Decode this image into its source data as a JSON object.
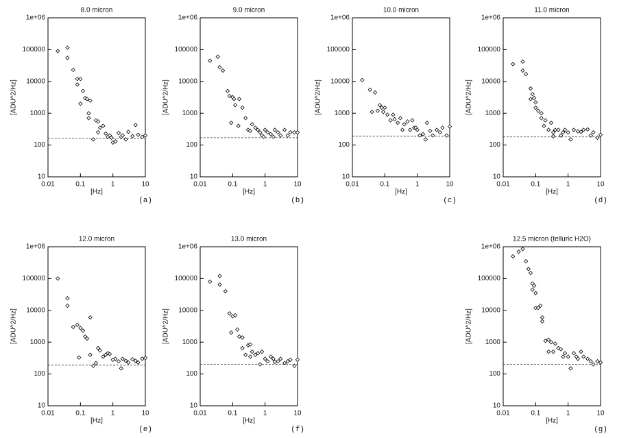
{
  "chart_data": [
    {
      "type": "scatter",
      "title": "8.0 micron",
      "x_label": "[Hz]",
      "y_label": "[ADU^2/Hz]",
      "panel_label": "(a)",
      "log_x": true,
      "log_y": true,
      "marker": "diamond",
      "color": "#000000",
      "xlim": [
        0.01,
        10
      ],
      "ylim": [
        10,
        1000000
      ],
      "xticks": [
        0.01,
        0.1,
        1,
        10
      ],
      "yticks": [
        10,
        100,
        1000,
        10000,
        100000,
        {
          "value": 1000000,
          "label": "1e+06"
        }
      ],
      "noise_level": 160,
      "x": [
        0.02,
        0.04,
        0.04,
        0.06,
        0.08,
        0.08,
        0.1,
        0.1,
        0.12,
        0.14,
        0.16,
        0.18,
        0.18,
        0.2,
        0.25,
        0.3,
        0.35,
        0.35,
        0.4,
        0.5,
        0.6,
        0.7,
        0.8,
        0.9,
        1,
        1.2,
        1.5,
        1.8,
        2,
        2.5,
        3,
        4,
        5,
        6,
        8,
        10
      ],
      "values": [
        90000,
        115000,
        55000,
        23000,
        12000,
        8000,
        12000,
        2000,
        5000,
        3000,
        2800,
        1000,
        700,
        2500,
        150,
        600,
        550,
        250,
        350,
        400,
        230,
        180,
        200,
        170,
        120,
        130,
        240,
        180,
        200,
        150,
        260,
        190,
        430,
        210,
        180,
        200
      ]
    },
    {
      "type": "scatter",
      "title": "9.0 micron",
      "x_label": "[Hz]",
      "y_label": "[ADU^2/Hz]",
      "panel_label": "(b)",
      "log_x": true,
      "log_y": true,
      "marker": "diamond",
      "color": "#000000",
      "xlim": [
        0.01,
        10
      ],
      "ylim": [
        10,
        1000000
      ],
      "xticks": [
        0.01,
        0.1,
        1,
        10
      ],
      "yticks": [
        10,
        100,
        1000,
        10000,
        100000,
        {
          "value": 1000000,
          "label": "1e+06"
        }
      ],
      "noise_level": 170,
      "x": [
        0.02,
        0.035,
        0.04,
        0.05,
        0.07,
        0.08,
        0.1,
        0.11,
        0.12,
        0.09,
        0.15,
        0.16,
        0.2,
        0.25,
        0.3,
        0.35,
        0.4,
        0.5,
        0.6,
        0.7,
        0.8,
        0.9,
        1,
        1.2,
        1.5,
        1.8,
        2,
        2.5,
        3,
        4,
        5,
        6,
        8,
        10
      ],
      "values": [
        45000,
        60000,
        28000,
        22000,
        5000,
        3500,
        3200,
        2800,
        1800,
        500,
        400,
        2800,
        1500,
        700,
        300,
        280,
        450,
        350,
        300,
        250,
        200,
        180,
        300,
        250,
        220,
        180,
        300,
        250,
        200,
        300,
        200,
        250,
        250,
        250
      ]
    },
    {
      "type": "scatter",
      "title": "10.0 micron",
      "x_label": "[Hz]",
      "y_label": "[ADU^2/Hz]",
      "panel_label": "(c)",
      "log_x": true,
      "log_y": true,
      "marker": "diamond",
      "color": "#000000",
      "xlim": [
        0.01,
        10
      ],
      "ylim": [
        10,
        1000000
      ],
      "xticks": [
        0.01,
        0.1,
        1,
        10
      ],
      "yticks": [
        10,
        100,
        1000,
        10000,
        100000,
        {
          "value": 1000000,
          "label": "1e+06"
        }
      ],
      "noise_level": 190,
      "x": [
        0.02,
        0.035,
        0.04,
        0.05,
        0.06,
        0.07,
        0.08,
        0.09,
        0.1,
        0.12,
        0.15,
        0.18,
        0.2,
        0.25,
        0.3,
        0.35,
        0.4,
        0.5,
        0.6,
        0.7,
        0.8,
        0.9,
        1,
        1.2,
        1.5,
        1.8,
        2,
        2.5,
        3,
        4,
        5,
        6,
        8,
        10
      ],
      "values": [
        11000,
        5500,
        1100,
        4500,
        1200,
        1800,
        1500,
        1100,
        1500,
        900,
        600,
        900,
        650,
        500,
        700,
        300,
        450,
        550,
        300,
        600,
        350,
        350,
        300,
        200,
        220,
        150,
        500,
        280,
        200,
        300,
        250,
        350,
        200,
        380
      ]
    },
    {
      "type": "scatter",
      "title": "11.0 micron",
      "x_label": "[Hz]",
      "y_label": "[ADU^2/Hz]",
      "panel_label": "(d)",
      "log_x": true,
      "log_y": true,
      "marker": "diamond",
      "color": "#000000",
      "xlim": [
        0.01,
        10
      ],
      "ylim": [
        10,
        1000000
      ],
      "xticks": [
        0.01,
        0.1,
        1,
        10
      ],
      "yticks": [
        10,
        100,
        1000,
        10000,
        100000,
        {
          "value": 1000000,
          "label": "1e+06"
        }
      ],
      "noise_level": 180,
      "x": [
        0.02,
        0.04,
        0.04,
        0.05,
        0.07,
        0.08,
        0.09,
        0.07,
        0.1,
        0.1,
        0.12,
        0.15,
        0.15,
        0.18,
        0.2,
        0.25,
        0.3,
        0.35,
        0.35,
        0.4,
        0.5,
        0.6,
        0.7,
        0.8,
        1,
        1.2,
        1.5,
        2,
        2.5,
        3,
        4,
        5,
        6,
        8,
        10
      ],
      "values": [
        35000,
        42000,
        22000,
        17000,
        6000,
        4000,
        3000,
        2800,
        2200,
        1500,
        1200,
        1000,
        700,
        400,
        600,
        300,
        500,
        250,
        190,
        300,
        300,
        200,
        250,
        300,
        250,
        150,
        300,
        270,
        260,
        300,
        310,
        200,
        250,
        170,
        210
      ]
    },
    {
      "type": "scatter",
      "title": "12.0 micron",
      "x_label": "[Hz]",
      "y_label": "[ADU^2/Hz]",
      "panel_label": "(e)",
      "log_x": true,
      "log_y": true,
      "marker": "diamond",
      "color": "#000000",
      "xlim": [
        0.01,
        10
      ],
      "ylim": [
        10,
        1000000
      ],
      "xticks": [
        0.01,
        0.1,
        1,
        10
      ],
      "yticks": [
        10,
        100,
        1000,
        10000,
        100000,
        {
          "value": 1000000,
          "label": "1e+06"
        }
      ],
      "noise_level": 190,
      "x": [
        0.02,
        0.04,
        0.04,
        0.06,
        0.08,
        0.09,
        0.1,
        0.12,
        0.14,
        0.16,
        0.2,
        0.2,
        0.25,
        0.3,
        0.35,
        0.4,
        0.5,
        0.6,
        0.7,
        0.8,
        1,
        1.2,
        1.5,
        1.8,
        2,
        2.5,
        3,
        4,
        5,
        6,
        8,
        10
      ],
      "values": [
        100000,
        24000,
        14000,
        3000,
        3500,
        330,
        2800,
        2300,
        1500,
        1300,
        6000,
        400,
        180,
        220,
        650,
        550,
        350,
        400,
        450,
        420,
        280,
        300,
        250,
        150,
        300,
        260,
        230,
        290,
        260,
        230,
        300,
        320
      ]
    },
    {
      "type": "scatter",
      "title": "13.0 micron",
      "x_label": "[Hz]",
      "y_label": "[ADU^2/Hz]",
      "panel_label": "(f)",
      "log_x": true,
      "log_y": true,
      "marker": "diamond",
      "color": "#000000",
      "xlim": [
        0.01,
        10
      ],
      "ylim": [
        10,
        1000000
      ],
      "xticks": [
        0.01,
        0.1,
        1,
        10
      ],
      "yticks": [
        10,
        100,
        1000,
        10000,
        100000,
        {
          "value": 1000000,
          "label": "1e+06"
        }
      ],
      "noise_level": 200,
      "x": [
        0.02,
        0.04,
        0.04,
        0.06,
        0.08,
        0.1,
        0.09,
        0.12,
        0.14,
        0.16,
        0.2,
        0.2,
        0.25,
        0.3,
        0.35,
        0.35,
        0.4,
        0.5,
        0.6,
        0.7,
        0.8,
        1,
        1.2,
        1.5,
        1.8,
        2,
        2.5,
        3,
        4,
        5,
        6,
        8,
        10
      ],
      "values": [
        80000,
        120000,
        65000,
        40000,
        8000,
        6500,
        2000,
        7000,
        2500,
        1500,
        1400,
        650,
        400,
        800,
        850,
        350,
        500,
        400,
        450,
        200,
        500,
        300,
        250,
        350,
        300,
        240,
        250,
        300,
        220,
        250,
        280,
        180,
        280
      ]
    },
    {
      "type": "scatter",
      "title": "12.5 micron (telluric H2O)",
      "x_label": "[Hz]",
      "y_label": "[ADU^2/Hz]",
      "panel_label": "(g)",
      "log_x": true,
      "log_y": true,
      "marker": "diamond",
      "color": "#000000",
      "xlim": [
        0.01,
        10
      ],
      "ylim": [
        10,
        1000000
      ],
      "xticks": [
        0.01,
        0.1,
        1,
        10
      ],
      "yticks": [
        10,
        100,
        1000,
        10000,
        100000,
        {
          "value": 1000000,
          "label": "1e+06"
        }
      ],
      "noise_level": 200,
      "x": [
        0.02,
        0.03,
        0.04,
        0.05,
        0.06,
        0.07,
        0.08,
        0.09,
        0.08,
        0.1,
        0.1,
        0.12,
        0.14,
        0.16,
        0.16,
        0.2,
        0.25,
        0.25,
        0.3,
        0.35,
        0.4,
        0.5,
        0.6,
        0.7,
        0.8,
        1,
        1.2,
        1.5,
        1.8,
        2,
        2.5,
        3,
        4,
        5,
        6,
        8,
        10
      ],
      "values": [
        500000,
        700000,
        850000,
        350000,
        200000,
        150000,
        70000,
        60000,
        45000,
        35000,
        12000,
        12000,
        14000,
        6000,
        4500,
        1100,
        1200,
        500,
        1000,
        500,
        900,
        650,
        600,
        350,
        450,
        350,
        150,
        450,
        350,
        300,
        500,
        350,
        300,
        250,
        200,
        250,
        230
      ]
    }
  ]
}
